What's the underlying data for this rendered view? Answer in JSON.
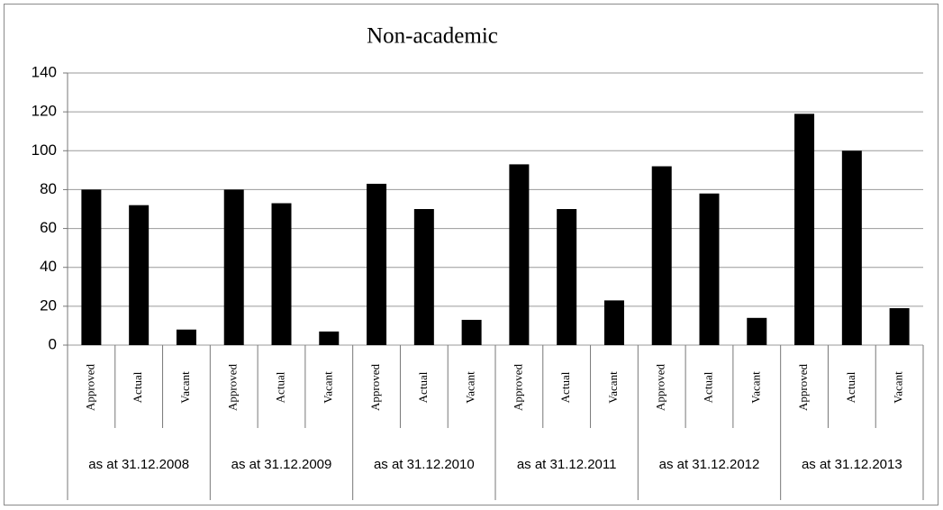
{
  "chart_data": {
    "type": "bar",
    "title": "Non-academic",
    "categories": [
      "Approved",
      "Actual",
      "Vacant",
      "Approved",
      "Actual",
      "Vacant",
      "Approved",
      "Actual",
      "Vacant",
      "Approved",
      "Actual",
      "Vacant",
      "Approved",
      "Actual",
      "Vacant",
      "Approved",
      "Actual",
      "Vacant"
    ],
    "groups": [
      "as at 31.12.2008",
      "as at 31.12.2009",
      "as at  31.12.2010",
      "as at 31.12.2011",
      "as at 31.12.2012",
      "as at 31.12.2013"
    ],
    "values": [
      80,
      72,
      8,
      80,
      73,
      7,
      83,
      70,
      13,
      93,
      70,
      23,
      92,
      78,
      14,
      119,
      100,
      19
    ],
    "color": "#000000",
    "ylim": [
      0,
      140
    ],
    "yticks": [
      0,
      20,
      40,
      60,
      80,
      100,
      120,
      140
    ],
    "grid": true
  }
}
